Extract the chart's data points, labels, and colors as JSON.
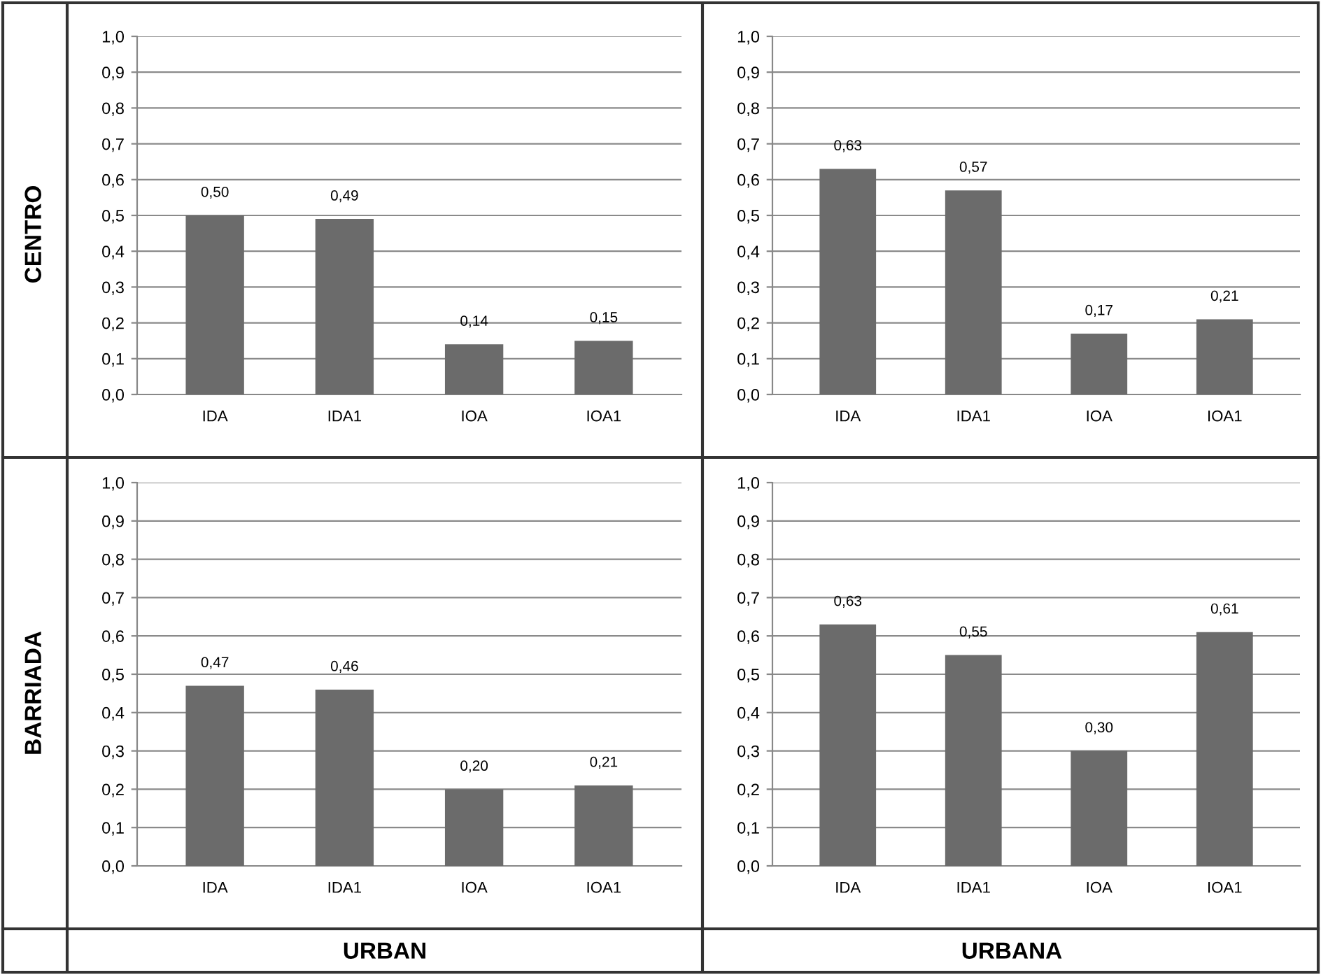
{
  "chart_data": [
    {
      "type": "bar",
      "ylabel": "CENTRO",
      "categories": [
        "IDA",
        "IDA1",
        "IOA",
        "IOA1"
      ],
      "values": [
        0.5,
        0.49,
        0.14,
        0.15
      ],
      "value_labels": [
        "0,50",
        "0,49",
        "0,14",
        "0,15"
      ],
      "color": "#6b6b6b",
      "ylim": [
        0,
        1.0
      ],
      "yticks": [
        {
          "value": 0,
          "label": "0,0"
        },
        {
          "value": 0.1,
          "label": "0,1"
        },
        {
          "value": 0.2,
          "label": "0,2"
        },
        {
          "value": 0.3,
          "label": "0,3"
        },
        {
          "value": 0.4,
          "label": "0,4"
        },
        {
          "value": 0.5,
          "label": "0,5"
        },
        {
          "value": 0.6,
          "label": "0,6"
        },
        {
          "value": 0.7,
          "label": "0,7"
        },
        {
          "value": 0.8,
          "label": "0,8"
        },
        {
          "value": 0.9,
          "label": "0,9"
        },
        {
          "value": 1.0,
          "label": "1,0"
        }
      ],
      "grid": "y",
      "legend": false
    },
    {
      "type": "bar",
      "categories": [
        "IDA",
        "IDA1",
        "IOA",
        "IOA1"
      ],
      "values": [
        0.63,
        0.57,
        0.17,
        0.21
      ],
      "value_labels": [
        "0,63",
        "0,57",
        "0,17",
        "0,21"
      ],
      "color": "#6b6b6b",
      "ylim": [
        0,
        1.0
      ],
      "yticks": [
        {
          "value": 0,
          "label": "0,0"
        },
        {
          "value": 0.1,
          "label": "0,1"
        },
        {
          "value": 0.2,
          "label": "0,2"
        },
        {
          "value": 0.3,
          "label": "0,3"
        },
        {
          "value": 0.4,
          "label": "0,4"
        },
        {
          "value": 0.5,
          "label": "0,5"
        },
        {
          "value": 0.6,
          "label": "0,6"
        },
        {
          "value": 0.7,
          "label": "0,7"
        },
        {
          "value": 0.8,
          "label": "0,8"
        },
        {
          "value": 0.9,
          "label": "0,9"
        },
        {
          "value": 1.0,
          "label": "1,0"
        }
      ],
      "grid": "y",
      "legend": false
    },
    {
      "type": "bar",
      "ylabel": "BARRIADA",
      "xlabel": "URBAN",
      "categories": [
        "IDA",
        "IDA1",
        "IOA",
        "IOA1"
      ],
      "values": [
        0.47,
        0.46,
        0.2,
        0.21
      ],
      "value_labels": [
        "0,47",
        "0,46",
        "0,20",
        "0,21"
      ],
      "color": "#6b6b6b",
      "ylim": [
        0,
        1.0
      ],
      "yticks": [
        {
          "value": 0,
          "label": "0,0"
        },
        {
          "value": 0.1,
          "label": "0,1"
        },
        {
          "value": 0.2,
          "label": "0,2"
        },
        {
          "value": 0.3,
          "label": "0,3"
        },
        {
          "value": 0.4,
          "label": "0,4"
        },
        {
          "value": 0.5,
          "label": "0,5"
        },
        {
          "value": 0.6,
          "label": "0,6"
        },
        {
          "value": 0.7,
          "label": "0,7"
        },
        {
          "value": 0.8,
          "label": "0,8"
        },
        {
          "value": 0.9,
          "label": "0,9"
        },
        {
          "value": 1.0,
          "label": "1,0"
        }
      ],
      "grid": "y",
      "legend": false
    },
    {
      "type": "bar",
      "xlabel": "URBANA",
      "categories": [
        "IDA",
        "IDA1",
        "IOA",
        "IOA1"
      ],
      "values": [
        0.63,
        0.55,
        0.3,
        0.61
      ],
      "value_labels": [
        "0,63",
        "0,55",
        "0,30",
        "0,61"
      ],
      "color": "#6b6b6b",
      "ylim": [
        0,
        1.0
      ],
      "yticks": [
        {
          "value": 0,
          "label": "0,0"
        },
        {
          "value": 0.1,
          "label": "0,1"
        },
        {
          "value": 0.2,
          "label": "0,2"
        },
        {
          "value": 0.3,
          "label": "0,3"
        },
        {
          "value": 0.4,
          "label": "0,4"
        },
        {
          "value": 0.5,
          "label": "0,5"
        },
        {
          "value": 0.6,
          "label": "0,6"
        },
        {
          "value": 0.7,
          "label": "0,7"
        },
        {
          "value": 0.8,
          "label": "0,8"
        },
        {
          "value": 0.9,
          "label": "0,9"
        },
        {
          "value": 1.0,
          "label": "1,0"
        }
      ],
      "grid": "y",
      "legend": false
    }
  ]
}
